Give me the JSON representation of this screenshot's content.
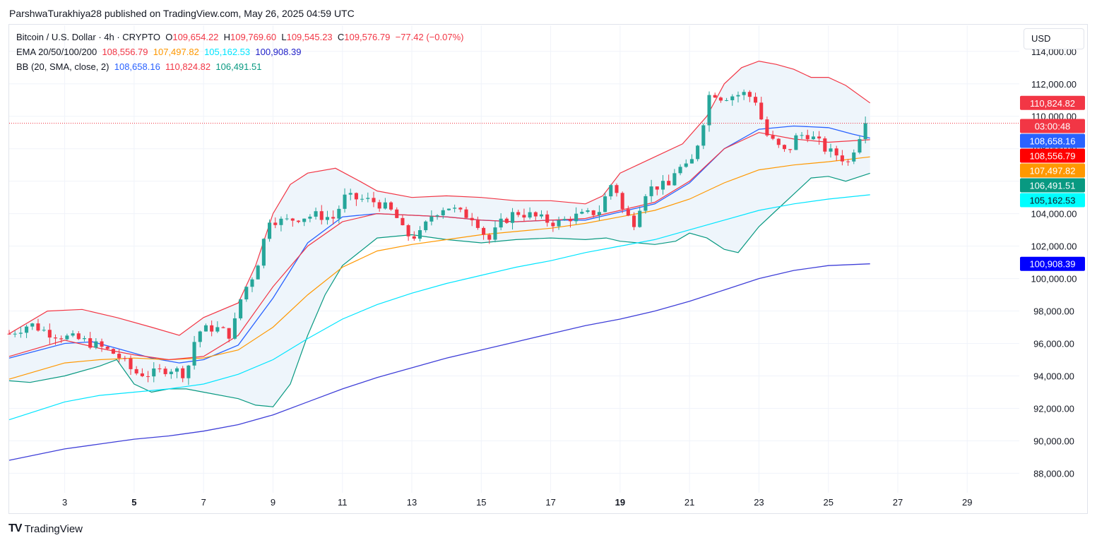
{
  "publisher": "ParshwaTurakhiya28 published on TradingView.com, May 26, 2025 04:59 UTC",
  "legend": {
    "symbol": "Bitcoin / U.S. Dollar · 4h · CRYPTO",
    "ohlc": {
      "o_label": "O",
      "o": "109,654.22",
      "h_label": "H",
      "h": "109,769.60",
      "l_label": "L",
      "l": "109,545.23",
      "c_label": "C",
      "c": "109,576.79",
      "change": "−77.42 (−0.07%)"
    },
    "ema_label": "EMA 20/50/100/200",
    "ema_values": [
      "108,556.79",
      "107,497.82",
      "105,162.53",
      "100,908.39"
    ],
    "bb_label": "BB (20, SMA, close, 2)",
    "bb_values": [
      "108,658.16",
      "110,824.82",
      "106,491.51"
    ]
  },
  "currency_button": "USD",
  "branding": {
    "logo_mark": "TV",
    "name": "TradingView"
  },
  "colors": {
    "up": "#26a69a",
    "down": "#f23645",
    "ema20": "#f23645",
    "ema50": "#ff9800",
    "ema100": "#00e5ff",
    "ema200": "#3f3fd8",
    "bb_basis": "#2962ff",
    "bb_upper": "#f23645",
    "bb_lower": "#089981",
    "bb_fill": "#eef5fb",
    "grid": "#f0f3fa",
    "axis_text": "#131722"
  },
  "chart_data": {
    "type": "candlestick",
    "title": "Bitcoin / U.S. Dollar · 4h · CRYPTO",
    "ylim": [
      86800,
      115600
    ],
    "xlim": [
      1.4,
      30.5
    ],
    "y_ticks": [
      "88,000.00",
      "90,000.00",
      "92,000.00",
      "94,000.00",
      "96,000.00",
      "98,000.00",
      "100,000.00",
      "102,000.00",
      "104,000.00",
      "106,000.00",
      "108,000.00",
      "110,000.00",
      "112,000.00",
      "114,000.00"
    ],
    "y_tick_values": [
      88000,
      90000,
      92000,
      94000,
      96000,
      98000,
      100000,
      102000,
      104000,
      106000,
      108000,
      110000,
      112000,
      114000
    ],
    "x_ticks": [
      {
        "day": 3,
        "label": "3",
        "bold": false
      },
      {
        "day": 5,
        "label": "5",
        "bold": true
      },
      {
        "day": 7,
        "label": "7",
        "bold": false
      },
      {
        "day": 9,
        "label": "9",
        "bold": false
      },
      {
        "day": 11,
        "label": "11",
        "bold": false
      },
      {
        "day": 13,
        "label": "13",
        "bold": false
      },
      {
        "day": 15,
        "label": "15",
        "bold": false
      },
      {
        "day": 17,
        "label": "17",
        "bold": false
      },
      {
        "day": 19,
        "label": "19",
        "bold": true
      },
      {
        "day": 21,
        "label": "21",
        "bold": false
      },
      {
        "day": 23,
        "label": "23",
        "bold": false
      },
      {
        "day": 25,
        "label": "25",
        "bold": false
      },
      {
        "day": 27,
        "label": "27",
        "bold": false
      },
      {
        "day": 29,
        "label": "29",
        "bold": false
      }
    ],
    "last_price": 109576.79,
    "price_labels": [
      {
        "text": "110,824.82",
        "value": 110824.82,
        "bg": "#f23645",
        "fg": "#ffffff"
      },
      {
        "text": "03:00:48",
        "value": 109400,
        "bg": "#f23645",
        "fg": "#ffffff"
      },
      {
        "text": "108,658.16",
        "value": 108658.16,
        "bg": "#2962ff",
        "fg": "#ffffff"
      },
      {
        "text": "108,556.79",
        "value": 108556.79,
        "bg": "#ff0000",
        "fg": "#ffffff"
      },
      {
        "text": "107,497.82",
        "value": 107497.82,
        "bg": "#ff9800",
        "fg": "#ffffff"
      },
      {
        "text": "106,491.51",
        "value": 106491.51,
        "bg": "#089981",
        "fg": "#ffffff"
      },
      {
        "text": "105,162.53",
        "value": 105162.53,
        "bg": "#00ffff",
        "fg": "#131722"
      },
      {
        "text": "100,908.39",
        "value": 100908.39,
        "bg": "#0000ff",
        "fg": "#ffffff"
      }
    ],
    "closes_daily_anchor": [
      [
        1.4,
        96600
      ],
      [
        2.0,
        97200
      ],
      [
        2.5,
        96700
      ],
      [
        3.0,
        96400
      ],
      [
        3.5,
        96200
      ],
      [
        4.0,
        95800
      ],
      [
        4.5,
        95300
      ],
      [
        5.0,
        94200
      ],
      [
        5.5,
        94100
      ],
      [
        6.0,
        94500
      ],
      [
        6.5,
        94100
      ],
      [
        6.8,
        96700
      ],
      [
        7.3,
        97000
      ],
      [
        7.8,
        96500
      ],
      [
        8.1,
        99000
      ],
      [
        8.5,
        100500
      ],
      [
        8.9,
        103700
      ],
      [
        9.3,
        103500
      ],
      [
        9.8,
        103800
      ],
      [
        10.3,
        103900
      ],
      [
        10.8,
        103700
      ],
      [
        11.0,
        105000
      ],
      [
        11.5,
        104900
      ],
      [
        12.0,
        104700
      ],
      [
        12.5,
        104000
      ],
      [
        12.8,
        102700
      ],
      [
        13.2,
        102600
      ],
      [
        13.6,
        104000
      ],
      [
        14.0,
        104500
      ],
      [
        14.4,
        104000
      ],
      [
        14.8,
        103800
      ],
      [
        15.2,
        102300
      ],
      [
        15.6,
        103500
      ],
      [
        16.0,
        104100
      ],
      [
        16.4,
        103900
      ],
      [
        16.8,
        103600
      ],
      [
        17.2,
        103400
      ],
      [
        17.6,
        103800
      ],
      [
        18.0,
        103900
      ],
      [
        18.4,
        104200
      ],
      [
        18.8,
        106100
      ],
      [
        19.1,
        104000
      ],
      [
        19.4,
        103500
      ],
      [
        19.7,
        105300
      ],
      [
        20.0,
        105700
      ],
      [
        20.4,
        105700
      ],
      [
        20.6,
        106800
      ],
      [
        21.0,
        106800
      ],
      [
        21.3,
        108800
      ],
      [
        21.6,
        111600
      ],
      [
        21.9,
        111200
      ],
      [
        22.3,
        111300
      ],
      [
        22.6,
        111400
      ],
      [
        22.9,
        111000
      ],
      [
        23.2,
        108900
      ],
      [
        23.5,
        108200
      ],
      [
        23.8,
        107700
      ],
      [
        24.1,
        108800
      ],
      [
        24.4,
        108900
      ],
      [
        24.7,
        108400
      ],
      [
        25.0,
        107800
      ],
      [
        25.3,
        107600
      ],
      [
        25.6,
        107100
      ],
      [
        25.8,
        108500
      ],
      [
        26.1,
        109577
      ]
    ],
    "ema20": [
      [
        1.4,
        95200
      ],
      [
        3.0,
        96200
      ],
      [
        4.0,
        95700
      ],
      [
        5.0,
        95300
      ],
      [
        6.0,
        95000
      ],
      [
        7.0,
        95200
      ],
      [
        8.0,
        96500
      ],
      [
        9.0,
        99500
      ],
      [
        10.0,
        102000
      ],
      [
        11.0,
        103500
      ],
      [
        12.0,
        104000
      ],
      [
        13.0,
        103900
      ],
      [
        14.0,
        103800
      ],
      [
        15.0,
        103600
      ],
      [
        16.0,
        103500
      ],
      [
        17.0,
        103600
      ],
      [
        18.0,
        103700
      ],
      [
        19.0,
        104200
      ],
      [
        20.0,
        104700
      ],
      [
        21.0,
        106000
      ],
      [
        22.0,
        108000
      ],
      [
        23.0,
        109000
      ],
      [
        24.0,
        108600
      ],
      [
        25.0,
        108400
      ],
      [
        26.2,
        108557
      ]
    ],
    "ema50": [
      [
        1.4,
        93800
      ],
      [
        3.0,
        94800
      ],
      [
        4.0,
        95000
      ],
      [
        5.0,
        95100
      ],
      [
        6.0,
        95000
      ],
      [
        7.0,
        95100
      ],
      [
        8.0,
        95600
      ],
      [
        9.0,
        97000
      ],
      [
        10.0,
        99000
      ],
      [
        11.0,
        100700
      ],
      [
        12.0,
        101700
      ],
      [
        13.0,
        102100
      ],
      [
        14.0,
        102400
      ],
      [
        15.0,
        102700
      ],
      [
        16.0,
        102900
      ],
      [
        17.0,
        103100
      ],
      [
        18.0,
        103400
      ],
      [
        19.0,
        103800
      ],
      [
        20.0,
        104200
      ],
      [
        21.0,
        104900
      ],
      [
        22.0,
        105900
      ],
      [
        23.0,
        106700
      ],
      [
        24.0,
        107000
      ],
      [
        25.0,
        107200
      ],
      [
        26.2,
        107498
      ]
    ],
    "ema100": [
      [
        1.4,
        91300
      ],
      [
        3.0,
        92400
      ],
      [
        4.0,
        92800
      ],
      [
        5.0,
        93000
      ],
      [
        6.0,
        93200
      ],
      [
        7.0,
        93500
      ],
      [
        8.0,
        94100
      ],
      [
        9.0,
        95000
      ],
      [
        10.0,
        96300
      ],
      [
        11.0,
        97500
      ],
      [
        12.0,
        98400
      ],
      [
        13.0,
        99100
      ],
      [
        14.0,
        99700
      ],
      [
        15.0,
        100200
      ],
      [
        16.0,
        100700
      ],
      [
        17.0,
        101100
      ],
      [
        18.0,
        101600
      ],
      [
        19.0,
        102000
      ],
      [
        20.0,
        102400
      ],
      [
        21.0,
        103000
      ],
      [
        22.0,
        103600
      ],
      [
        23.0,
        104200
      ],
      [
        24.0,
        104600
      ],
      [
        25.0,
        104900
      ],
      [
        26.2,
        105163
      ]
    ],
    "ema200": [
      [
        1.4,
        88800
      ],
      [
        3.0,
        89500
      ],
      [
        4.0,
        89800
      ],
      [
        5.0,
        90100
      ],
      [
        6.0,
        90300
      ],
      [
        7.0,
        90600
      ],
      [
        8.0,
        91000
      ],
      [
        9.0,
        91600
      ],
      [
        10.0,
        92400
      ],
      [
        11.0,
        93200
      ],
      [
        12.0,
        93900
      ],
      [
        13.0,
        94500
      ],
      [
        14.0,
        95100
      ],
      [
        15.0,
        95600
      ],
      [
        16.0,
        96100
      ],
      [
        17.0,
        96600
      ],
      [
        18.0,
        97100
      ],
      [
        19.0,
        97500
      ],
      [
        20.0,
        98000
      ],
      [
        21.0,
        98600
      ],
      [
        22.0,
        99300
      ],
      [
        23.0,
        100000
      ],
      [
        24.0,
        100500
      ],
      [
        25.0,
        100800
      ],
      [
        26.2,
        100908
      ]
    ],
    "bb_basis": [
      [
        1.4,
        95100
      ],
      [
        3.0,
        96000
      ],
      [
        3.8,
        96100
      ],
      [
        4.5,
        95700
      ],
      [
        5.5,
        95100
      ],
      [
        6.3,
        94800
      ],
      [
        7.0,
        95000
      ],
      [
        8.0,
        95900
      ],
      [
        9.0,
        98800
      ],
      [
        10.0,
        102200
      ],
      [
        11.0,
        103800
      ],
      [
        12.0,
        104000
      ],
      [
        13.0,
        103900
      ],
      [
        14.0,
        103800
      ],
      [
        15.0,
        103600
      ],
      [
        16.0,
        103500
      ],
      [
        17.0,
        103600
      ],
      [
        18.0,
        103600
      ],
      [
        19.0,
        104100
      ],
      [
        20.0,
        104600
      ],
      [
        21.0,
        105900
      ],
      [
        22.0,
        108000
      ],
      [
        23.0,
        109200
      ],
      [
        24.0,
        109400
      ],
      [
        25.0,
        109300
      ],
      [
        25.7,
        108900
      ],
      [
        26.2,
        108658
      ]
    ],
    "bb_upper": [
      [
        1.4,
        96600
      ],
      [
        2.5,
        98000
      ],
      [
        3.5,
        98100
      ],
      [
        4.5,
        97600
      ],
      [
        5.5,
        97000
      ],
      [
        6.3,
        96500
      ],
      [
        7.0,
        97600
      ],
      [
        8.0,
        98500
      ],
      [
        8.5,
        100800
      ],
      [
        9.0,
        104000
      ],
      [
        9.5,
        105800
      ],
      [
        10.0,
        106500
      ],
      [
        10.8,
        106800
      ],
      [
        11.5,
        106000
      ],
      [
        12.0,
        105400
      ],
      [
        13.0,
        105000
      ],
      [
        14.0,
        105100
      ],
      [
        15.0,
        105000
      ],
      [
        16.0,
        104800
      ],
      [
        17.0,
        104800
      ],
      [
        18.0,
        104600
      ],
      [
        18.5,
        105100
      ],
      [
        19.0,
        106500
      ],
      [
        19.5,
        107000
      ],
      [
        20.0,
        107500
      ],
      [
        20.8,
        108300
      ],
      [
        21.5,
        110000
      ],
      [
        22.0,
        112000
      ],
      [
        22.5,
        113000
      ],
      [
        23.0,
        113400
      ],
      [
        23.5,
        113200
      ],
      [
        24.0,
        112900
      ],
      [
        24.5,
        112400
      ],
      [
        25.0,
        112400
      ],
      [
        25.5,
        111900
      ],
      [
        26.2,
        110825
      ]
    ],
    "bb_lower": [
      [
        1.4,
        93700
      ],
      [
        2.0,
        93600
      ],
      [
        3.0,
        94000
      ],
      [
        4.0,
        94600
      ],
      [
        4.5,
        95000
      ],
      [
        5.0,
        93500
      ],
      [
        5.5,
        93000
      ],
      [
        6.0,
        93200
      ],
      [
        6.5,
        93200
      ],
      [
        7.0,
        93000
      ],
      [
        8.0,
        92600
      ],
      [
        8.5,
        92200
      ],
      [
        9.0,
        92100
      ],
      [
        9.5,
        93500
      ],
      [
        10.0,
        96500
      ],
      [
        10.5,
        99000
      ],
      [
        11.0,
        100800
      ],
      [
        12.0,
        102500
      ],
      [
        13.0,
        102700
      ],
      [
        14.0,
        102400
      ],
      [
        15.0,
        102200
      ],
      [
        16.0,
        102400
      ],
      [
        17.0,
        102500
      ],
      [
        18.0,
        102400
      ],
      [
        18.6,
        102500
      ],
      [
        19.0,
        102300
      ],
      [
        19.5,
        102200
      ],
      [
        20.0,
        102100
      ],
      [
        20.6,
        102300
      ],
      [
        21.0,
        102800
      ],
      [
        21.5,
        102500
      ],
      [
        22.0,
        101800
      ],
      [
        22.4,
        101600
      ],
      [
        23.0,
        103200
      ],
      [
        23.5,
        104200
      ],
      [
        24.0,
        105200
      ],
      [
        24.5,
        106200
      ],
      [
        25.0,
        106300
      ],
      [
        25.5,
        106000
      ],
      [
        26.2,
        106492
      ]
    ]
  }
}
